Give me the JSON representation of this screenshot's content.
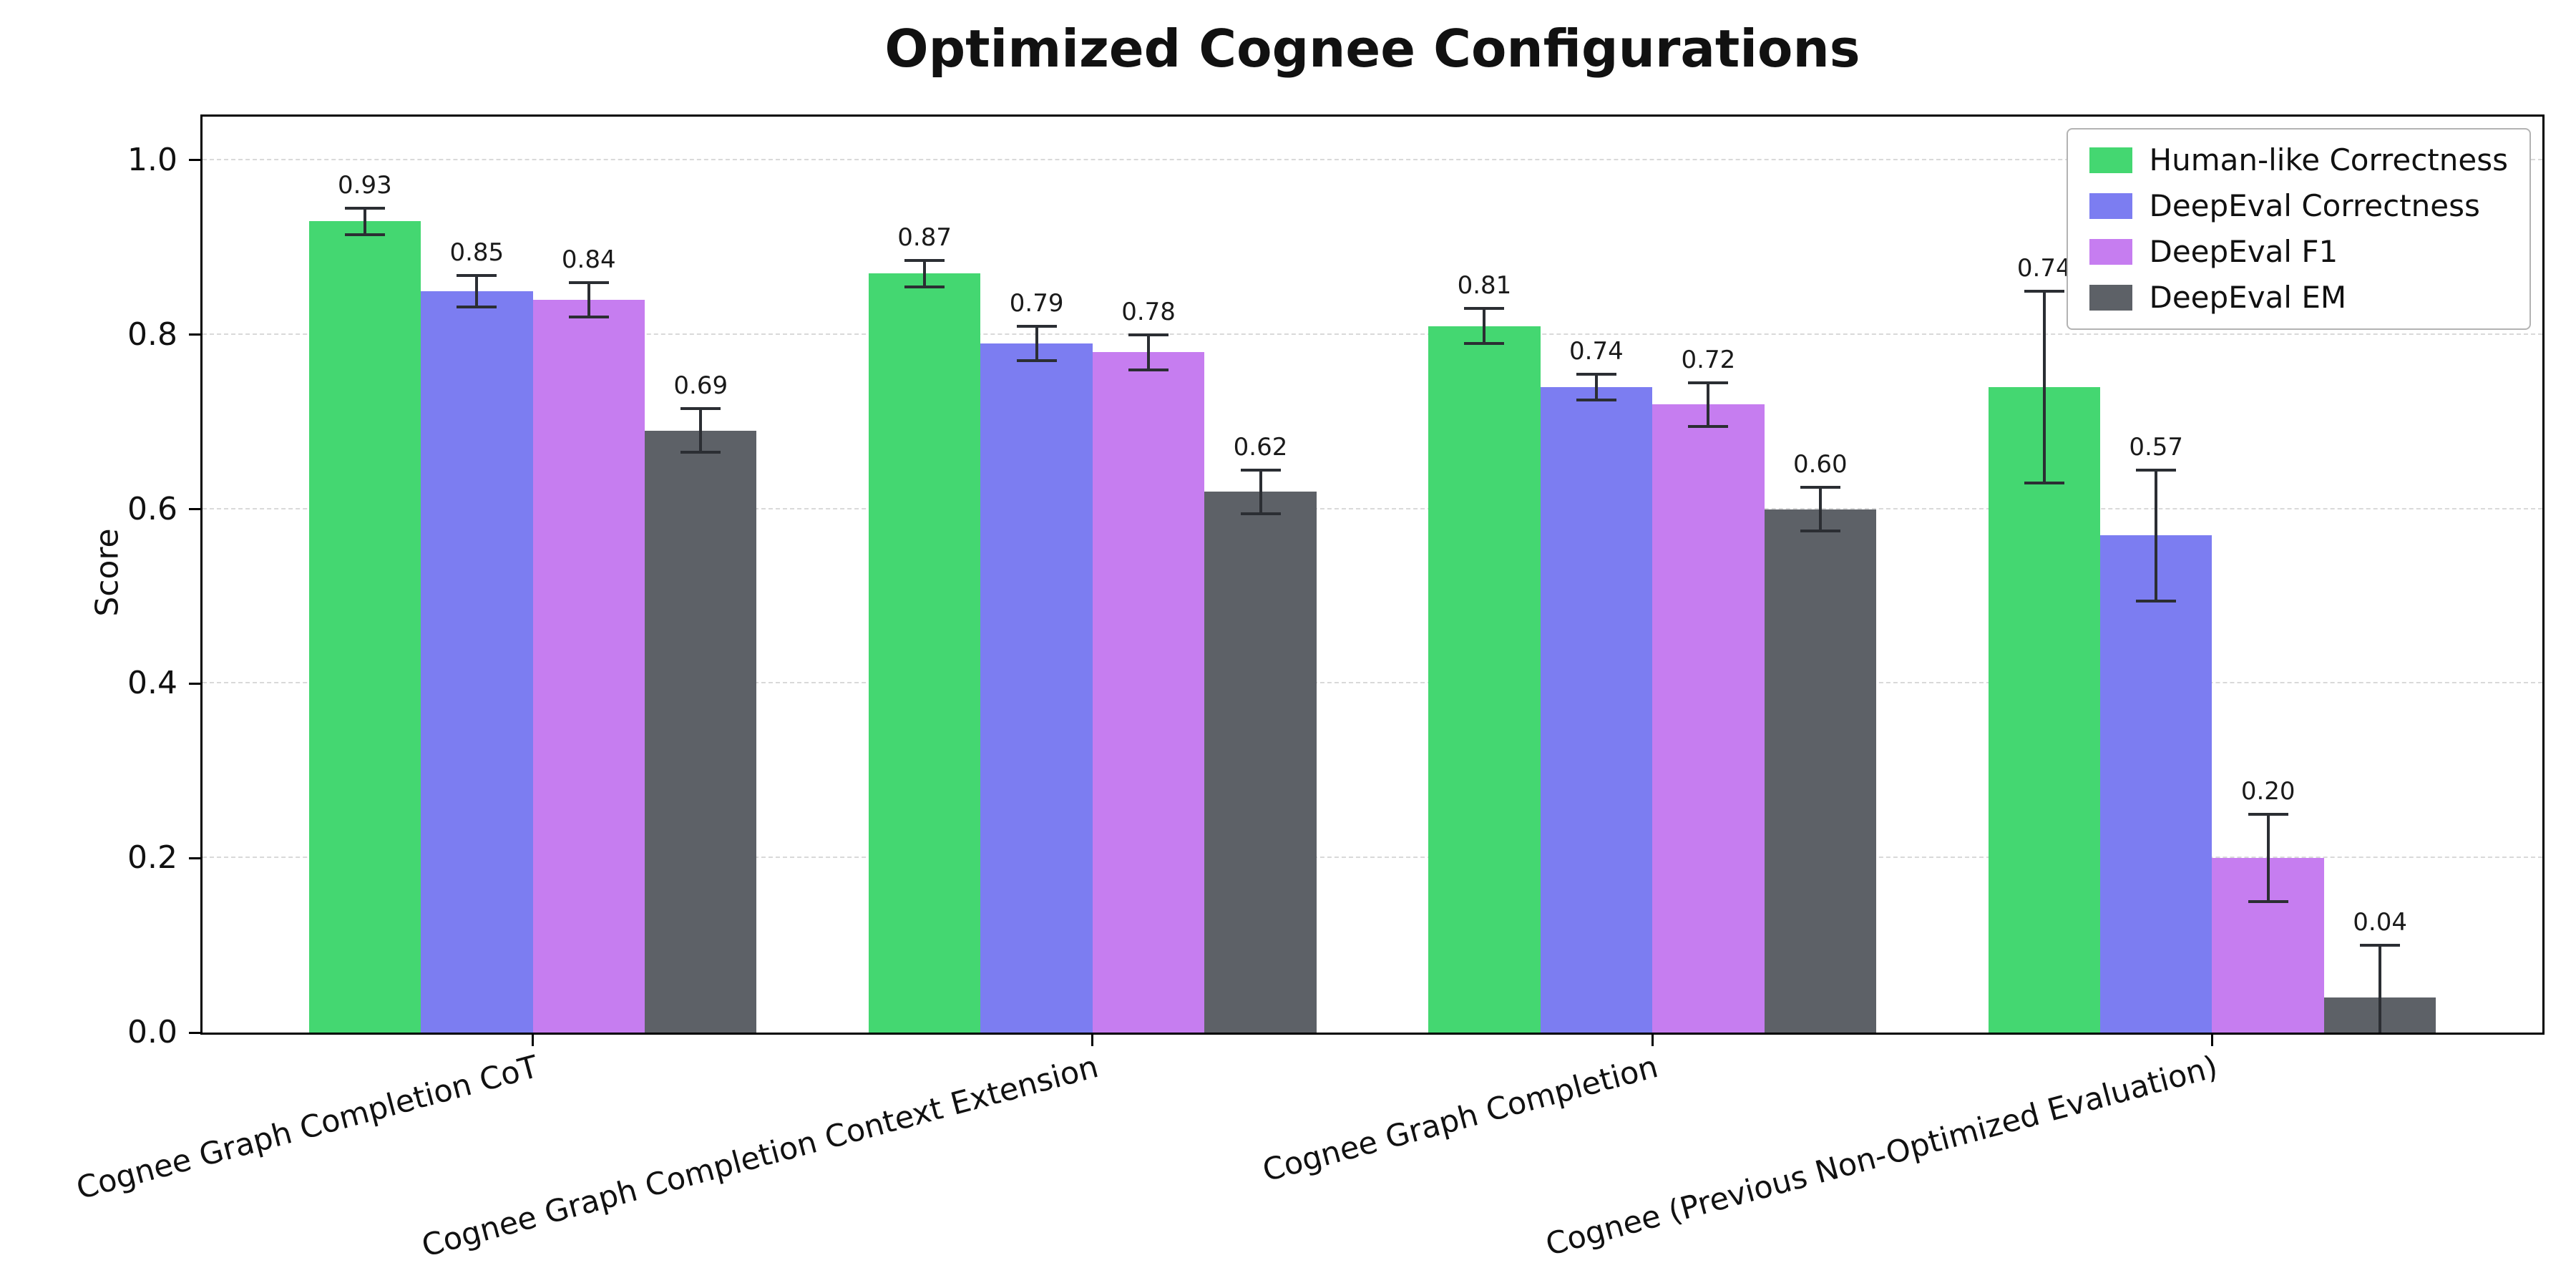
{
  "chart_data": {
    "type": "bar",
    "title": "Optimized Cognee Configurations",
    "ylabel": "Score",
    "xlabel": "",
    "categories": [
      "Cognee Graph Completion CoT",
      "Cognee Graph Completion Context Extension",
      "Cognee Graph Completion",
      "Cognee (Previous Non-Optimized Evaluation)"
    ],
    "series": [
      {
        "name": "Human-like Correctness",
        "color": "#44d771",
        "values": [
          0.93,
          0.87,
          0.81,
          0.74
        ],
        "errors": [
          0.015,
          0.015,
          0.02,
          0.11
        ]
      },
      {
        "name": "DeepEval Correctness",
        "color": "#7c7df1",
        "values": [
          0.85,
          0.79,
          0.74,
          0.57
        ],
        "errors": [
          0.018,
          0.02,
          0.015,
          0.075
        ]
      },
      {
        "name": "DeepEval F1",
        "color": "#c67df0",
        "values": [
          0.84,
          0.78,
          0.72,
          0.2
        ],
        "errors": [
          0.02,
          0.02,
          0.025,
          0.05
        ]
      },
      {
        "name": "DeepEval EM",
        "color": "#5d6167",
        "values": [
          0.69,
          0.62,
          0.6,
          0.04
        ],
        "errors": [
          0.025,
          0.025,
          0.025,
          0.06
        ]
      }
    ],
    "yticks": [
      0.0,
      0.2,
      0.4,
      0.6,
      0.8,
      1.0
    ],
    "ylim": [
      0,
      1.05
    ],
    "grid": true,
    "grid_style": "dashed",
    "legend_position": "upper right",
    "bar_label_format": "2dp",
    "error_bar_color": "#2b2e33"
  }
}
